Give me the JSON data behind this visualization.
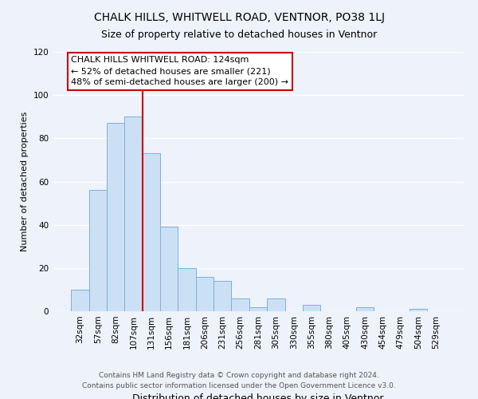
{
  "title": "CHALK HILLS, WHITWELL ROAD, VENTNOR, PO38 1LJ",
  "subtitle": "Size of property relative to detached houses in Ventnor",
  "xlabel": "Distribution of detached houses by size in Ventnor",
  "ylabel": "Number of detached properties",
  "bar_labels": [
    "32sqm",
    "57sqm",
    "82sqm",
    "107sqm",
    "131sqm",
    "156sqm",
    "181sqm",
    "206sqm",
    "231sqm",
    "256sqm",
    "281sqm",
    "305sqm",
    "330sqm",
    "355sqm",
    "380sqm",
    "405sqm",
    "430sqm",
    "454sqm",
    "479sqm",
    "504sqm",
    "529sqm"
  ],
  "bar_values": [
    10,
    56,
    87,
    90,
    73,
    39,
    20,
    16,
    14,
    6,
    2,
    6,
    0,
    3,
    0,
    0,
    2,
    0,
    0,
    1,
    0
  ],
  "bar_color": "#cce0f5",
  "bar_edge_color": "#7ab0d9",
  "vline_color": "#cc0000",
  "vline_x_index": 3.5,
  "ylim": [
    0,
    120
  ],
  "yticks": [
    0,
    20,
    40,
    60,
    80,
    100,
    120
  ],
  "annotation_title": "CHALK HILLS WHITWELL ROAD: 124sqm",
  "annotation_line1": "← 52% of detached houses are smaller (221)",
  "annotation_line2": "48% of semi-detached houses are larger (200) →",
  "annotation_box_facecolor": "white",
  "annotation_box_edgecolor": "#cc0000",
  "footer1": "Contains HM Land Registry data © Crown copyright and database right 2024.",
  "footer2": "Contains public sector information licensed under the Open Government Licence v3.0.",
  "fig_facecolor": "#eef2fb",
  "plot_facecolor": "#eef2fb",
  "grid_color": "white",
  "title_fontsize": 10,
  "subtitle_fontsize": 9,
  "xlabel_fontsize": 9,
  "ylabel_fontsize": 8,
  "tick_fontsize": 7.5,
  "annot_fontsize": 8,
  "footer_fontsize": 6.5
}
